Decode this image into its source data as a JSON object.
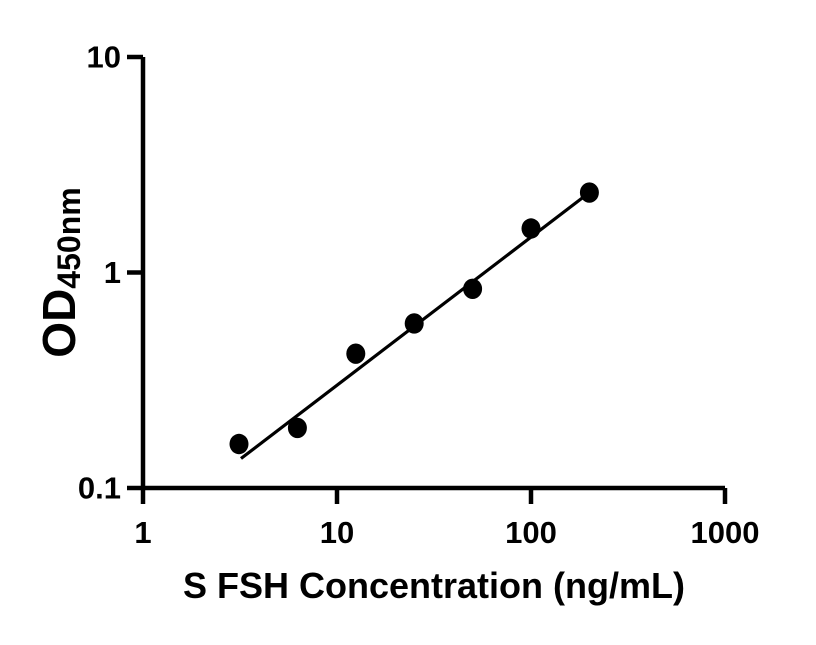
{
  "chart_data": {
    "type": "scatter",
    "title": "",
    "xlabel": "S FSH Concentration (ng/mL)",
    "ylabel_main": "OD",
    "ylabel_subscript": "450nm",
    "x_scale": "log",
    "y_scale": "log",
    "xlim": [
      1,
      1000
    ],
    "ylim": [
      0.1,
      10
    ],
    "x_ticks": {
      "values": [
        1,
        10,
        100,
        1000
      ],
      "labels": [
        "1",
        "10",
        "100",
        "1000"
      ]
    },
    "y_ticks": {
      "values": [
        0.1,
        1,
        10
      ],
      "labels": [
        "0.1",
        "1",
        "10"
      ]
    },
    "grid": false,
    "legend": false,
    "series": [
      {
        "name": "standard-points",
        "type": "scatter",
        "marker": "filled-circle",
        "color": "#000000",
        "x": [
          3.125,
          6.25,
          12.5,
          25,
          50,
          100,
          200
        ],
        "y": [
          0.16,
          0.19,
          0.42,
          0.58,
          0.84,
          1.6,
          2.35
        ]
      },
      {
        "name": "fit-line",
        "type": "line",
        "color": "#000000",
        "x": [
          3.2,
          200
        ],
        "y": [
          0.137,
          2.35
        ]
      }
    ],
    "foreground_color": "#000000",
    "background_color": "#ffffff"
  }
}
